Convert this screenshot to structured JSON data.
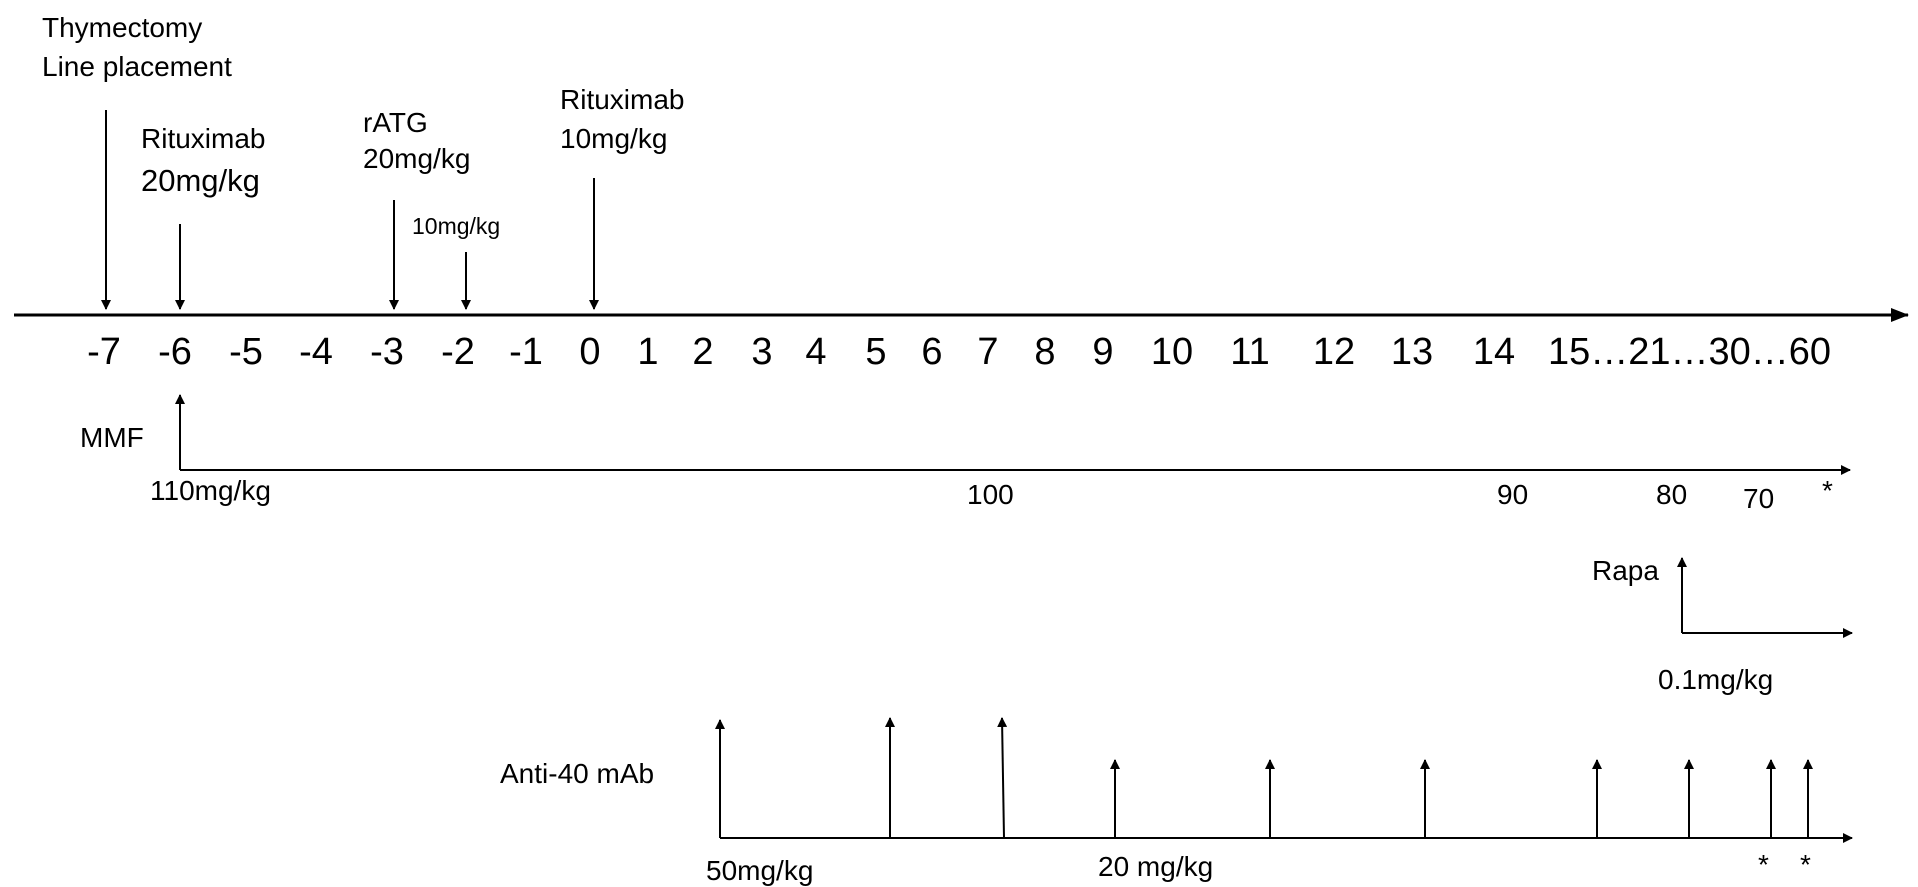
{
  "timeline": {
    "ticks": [
      "-7",
      "-6",
      "-5",
      "-4",
      "-3",
      "-2",
      "-1",
      "0",
      "1",
      "2",
      "3",
      "4",
      "5",
      "6",
      "7",
      "8",
      "9",
      "10",
      "11",
      "12",
      "13",
      "14"
    ],
    "tail": "15…21…30…60"
  },
  "events": {
    "thymectomy": [
      "Thymectomy",
      "Line placement"
    ],
    "rituximab_1": [
      "Rituximab",
      "20mg/kg"
    ],
    "ratg_1": [
      "rATG",
      "20mg/kg"
    ],
    "ratg_2": "10mg/kg",
    "rituximab_2": [
      "Rituximab",
      "10mg/kg"
    ]
  },
  "mmf": {
    "label": "MMF",
    "start_dose": "110mg/kg",
    "doses": [
      "100",
      "90",
      "80",
      "70"
    ],
    "end_mark": "*"
  },
  "rapa": {
    "label": "Rapa",
    "dose": "0.1mg/kg"
  },
  "anti40": {
    "label": "Anti-40 mAb",
    "start_dose": "50mg/kg",
    "later_dose": "20 mg/kg",
    "marks": [
      "*",
      "*"
    ]
  },
  "colors": {
    "line": "#000000",
    "background": "#ffffff"
  }
}
